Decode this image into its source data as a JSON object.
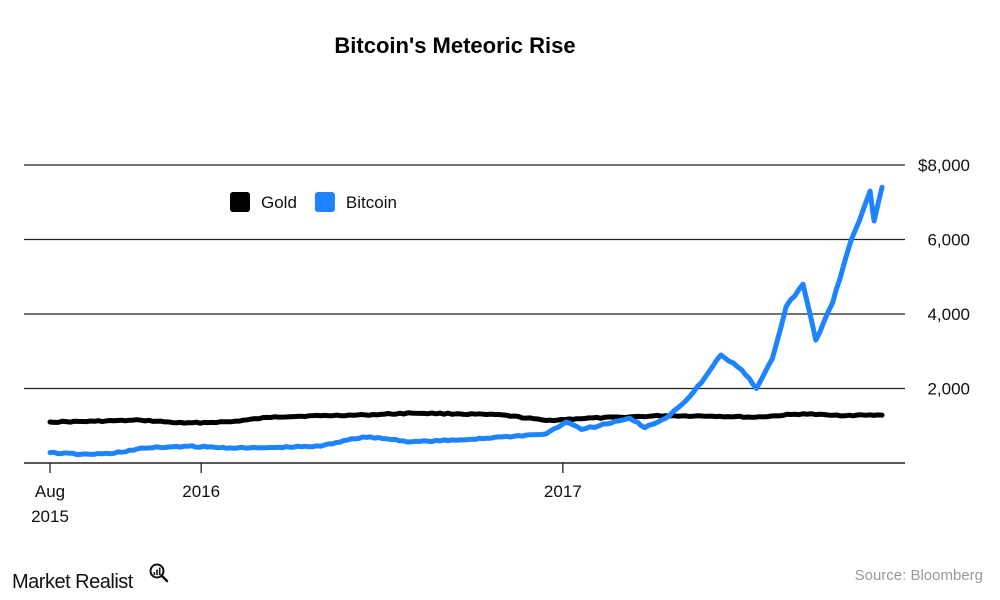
{
  "chart_data": {
    "type": "line",
    "title": "Bitcoin's Meteoric Rise",
    "xlabel": "",
    "ylabel": "",
    "x_range": [
      "2015-08-01",
      "2017-11-20"
    ],
    "ylim": [
      0,
      8000
    ],
    "y_ticks": [
      {
        "value": 2000,
        "label": "2,000"
      },
      {
        "value": 4000,
        "label": "4,000"
      },
      {
        "value": 6000,
        "label": "6,000"
      },
      {
        "value": 8000,
        "label": "$8,000"
      }
    ],
    "x_ticks": [
      {
        "date": "2015-08-01",
        "label": "Aug",
        "sublabel": "2015"
      },
      {
        "date": "2016-01-01",
        "label": "2016",
        "sublabel": ""
      },
      {
        "date": "2017-01-01",
        "label": "2017",
        "sublabel": ""
      }
    ],
    "grid": true,
    "legend_position": "top-left",
    "series": [
      {
        "name": "Gold",
        "color": "#000000",
        "points": [
          [
            "2015-08-01",
            1100
          ],
          [
            "2015-09-15",
            1120
          ],
          [
            "2015-11-01",
            1150
          ],
          [
            "2015-12-15",
            1070
          ],
          [
            "2016-02-01",
            1110
          ],
          [
            "2016-03-15",
            1240
          ],
          [
            "2016-05-01",
            1270
          ],
          [
            "2016-06-15",
            1290
          ],
          [
            "2016-08-01",
            1340
          ],
          [
            "2016-09-15",
            1320
          ],
          [
            "2016-11-01",
            1290
          ],
          [
            "2016-12-15",
            1140
          ],
          [
            "2017-01-15",
            1190
          ],
          [
            "2017-03-01",
            1230
          ],
          [
            "2017-04-15",
            1270
          ],
          [
            "2017-06-01",
            1260
          ],
          [
            "2017-07-15",
            1230
          ],
          [
            "2017-09-01",
            1320
          ],
          [
            "2017-10-01",
            1280
          ],
          [
            "2017-11-20",
            1285
          ]
        ]
      },
      {
        "name": "Bitcoin",
        "color": "#1d83ff",
        "points": [
          [
            "2015-08-01",
            280
          ],
          [
            "2015-09-01",
            230
          ],
          [
            "2015-10-01",
            250
          ],
          [
            "2015-11-05",
            400
          ],
          [
            "2015-12-15",
            450
          ],
          [
            "2016-01-15",
            420
          ],
          [
            "2016-02-15",
            400
          ],
          [
            "2016-03-15",
            415
          ],
          [
            "2016-05-01",
            450
          ],
          [
            "2016-06-01",
            650
          ],
          [
            "2016-06-20",
            700
          ],
          [
            "2016-08-01",
            570
          ],
          [
            "2016-09-15",
            610
          ],
          [
            "2016-11-01",
            700
          ],
          [
            "2016-12-15",
            780
          ],
          [
            "2017-01-04",
            1100
          ],
          [
            "2017-01-20",
            900
          ],
          [
            "2017-02-15",
            1050
          ],
          [
            "2017-03-10",
            1200
          ],
          [
            "2017-03-25",
            950
          ],
          [
            "2017-04-15",
            1200
          ],
          [
            "2017-05-10",
            1800
          ],
          [
            "2017-05-25",
            2300
          ],
          [
            "2017-06-10",
            2900
          ],
          [
            "2017-07-01",
            2500
          ],
          [
            "2017-07-16",
            2000
          ],
          [
            "2017-08-01",
            2800
          ],
          [
            "2017-08-15",
            4200
          ],
          [
            "2017-09-01",
            4800
          ],
          [
            "2017-09-14",
            3300
          ],
          [
            "2017-10-01",
            4300
          ],
          [
            "2017-10-20",
            6000
          ],
          [
            "2017-11-01",
            6800
          ],
          [
            "2017-11-08",
            7300
          ],
          [
            "2017-11-12",
            6500
          ],
          [
            "2017-11-20",
            7400
          ]
        ]
      }
    ],
    "source": "Source: Bloomberg"
  },
  "brand": {
    "text": "Market Realist",
    "icon": "magnifier-chart-icon"
  }
}
